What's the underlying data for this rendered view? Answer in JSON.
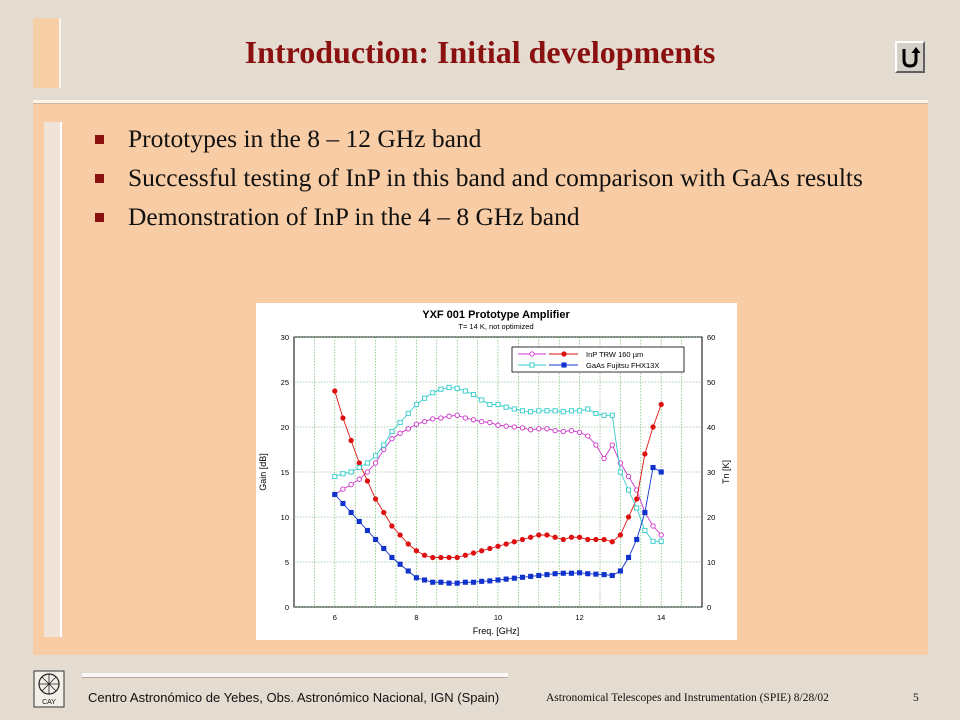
{
  "slide": {
    "title": "Introduction: Initial developments",
    "bullets": [
      "Prototypes in the 8 – 12 GHz band",
      "Successful testing of InP in this band and comparison with GaAs results",
      "Demonstration of InP in the 4 – 8 GHz band"
    ],
    "footer_left": "Centro Astronómico de Yebes, Obs. Astronómico Nacional, IGN (Spain)",
    "footer_right": "Astronomical Telescopes and Instrumentation (SPIE)  8/28/02",
    "page_number": "5",
    "logo_text": "CAY",
    "accent_color": "#8b1010"
  },
  "chart_data": {
    "type": "line",
    "title": "YXF 001 Prototype Amplifier",
    "subtitle": "T= 14 K, not optimized",
    "xlabel": "Freq. [GHz]",
    "ylabel": "Gain [dB]",
    "y2label": "Tn [K]",
    "xlim": [
      5,
      15
    ],
    "ylim": [
      0,
      30
    ],
    "y2lim": [
      0,
      60
    ],
    "xticks": [
      "6",
      "8",
      "10",
      "12",
      "14"
    ],
    "yticks": [
      "0",
      "5",
      "10",
      "15",
      "20",
      "25",
      "30"
    ],
    "y2ticks": [
      "0",
      "10",
      "20",
      "30",
      "40",
      "50",
      "60"
    ],
    "grid": true,
    "legend_position": "top-right",
    "legend": [
      {
        "label": "InP   TRW 160 µm",
        "colors": [
          "#cc33cc",
          "#dd1111"
        ]
      },
      {
        "label": "GaAs Fujitsu FHX13X",
        "colors": [
          "#33cccc",
          "#1133cc"
        ]
      }
    ],
    "x": [
      6.0,
      6.2,
      6.4,
      6.6,
      6.8,
      7.0,
      7.2,
      7.4,
      7.6,
      7.8,
      8.0,
      8.2,
      8.4,
      8.6,
      8.8,
      9.0,
      9.2,
      9.4,
      9.6,
      9.8,
      10.0,
      10.2,
      10.4,
      10.6,
      10.8,
      11.0,
      11.2,
      11.4,
      11.6,
      11.8,
      12.0,
      12.2,
      12.4,
      12.6,
      12.8,
      13.0,
      13.2,
      13.4,
      13.6,
      13.8,
      14.0
    ],
    "series": [
      {
        "name": "InP Gain",
        "axis": "left",
        "color": "#cc33cc",
        "marker": "circle-open",
        "values": [
          12.5,
          13.1,
          13.6,
          14.2,
          15.0,
          16.0,
          17.5,
          18.7,
          19.3,
          19.8,
          20.3,
          20.6,
          20.9,
          21.0,
          21.2,
          21.3,
          21.0,
          20.8,
          20.6,
          20.5,
          20.2,
          20.1,
          20.0,
          19.9,
          19.7,
          19.8,
          19.8,
          19.6,
          19.5,
          19.6,
          19.4,
          19.0,
          18.0,
          16.5,
          18.0,
          16.0,
          14.5,
          13.0,
          10.5,
          9.0,
          8.0
        ]
      },
      {
        "name": "InP Tn",
        "axis": "right",
        "color": "#dd1111",
        "marker": "circle-filled",
        "values": [
          48,
          42,
          37,
          32,
          28,
          24,
          21,
          18,
          16,
          14,
          12.5,
          11.5,
          11,
          11,
          11,
          11,
          11.5,
          12,
          12.5,
          13,
          13.5,
          14,
          14.5,
          15,
          15.5,
          16,
          16,
          15.5,
          15,
          15.5,
          15.5,
          15,
          15,
          15,
          14.5,
          16,
          20,
          24,
          34,
          40,
          45
        ]
      },
      {
        "name": "GaAs Gain",
        "axis": "left",
        "color": "#33cccc",
        "marker": "square-open",
        "values": [
          14.5,
          14.8,
          15.0,
          15.5,
          16.0,
          16.8,
          18.0,
          19.5,
          20.5,
          21.5,
          22.5,
          23.2,
          23.8,
          24.2,
          24.4,
          24.3,
          24.0,
          23.6,
          23.0,
          22.5,
          22.5,
          22.2,
          22.0,
          21.8,
          21.7,
          21.8,
          21.8,
          21.8,
          21.7,
          21.8,
          21.8,
          22.0,
          21.5,
          21.3,
          21.3,
          15.0,
          13.0,
          11.0,
          8.5,
          7.3,
          7.3
        ]
      },
      {
        "name": "GaAs Tn",
        "axis": "right",
        "color": "#1133cc",
        "marker": "square-filled",
        "values": [
          25,
          23,
          21,
          19,
          17,
          15,
          13,
          11,
          9.5,
          8,
          6.5,
          6,
          5.5,
          5.5,
          5.3,
          5.3,
          5.5,
          5.5,
          5.7,
          5.8,
          6,
          6.2,
          6.4,
          6.6,
          6.8,
          7,
          7.2,
          7.4,
          7.5,
          7.5,
          7.6,
          7.4,
          7.3,
          7.2,
          7.0,
          8.0,
          11,
          15,
          21,
          31,
          30
        ]
      }
    ]
  }
}
